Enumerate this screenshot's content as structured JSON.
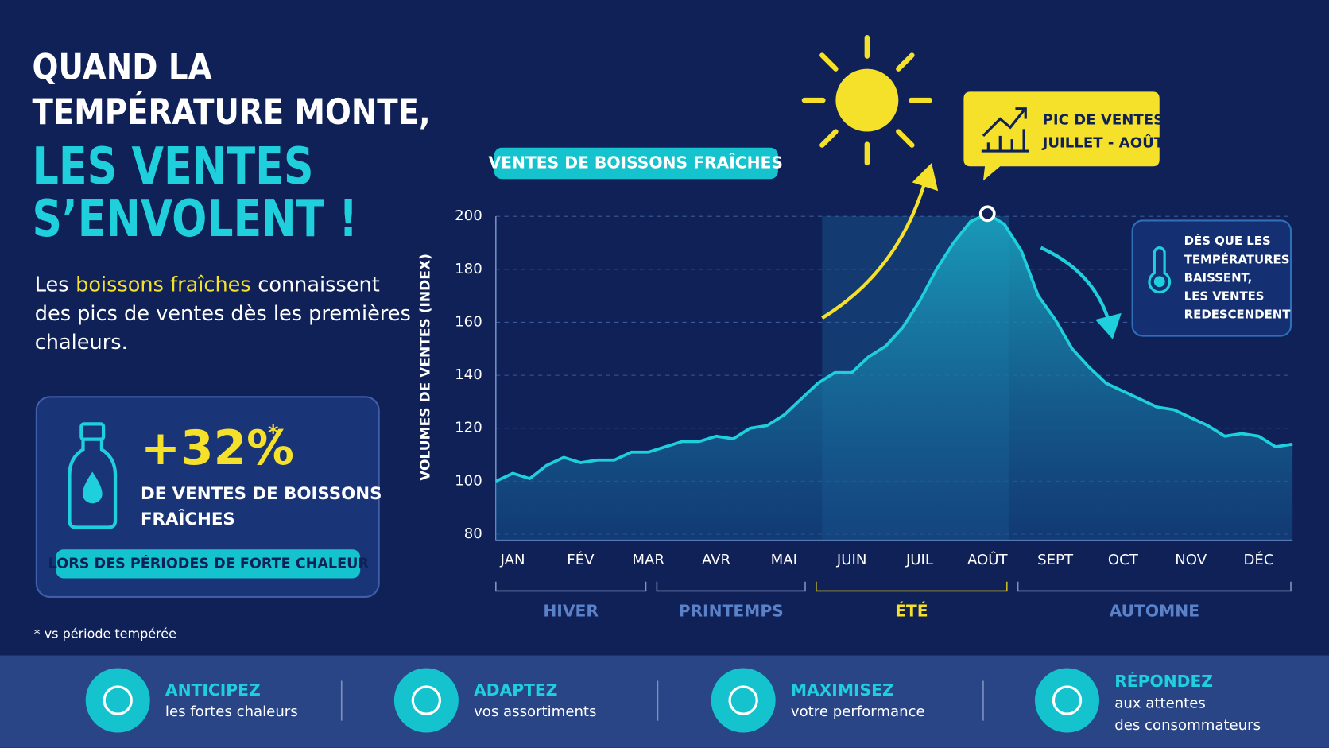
{
  "headline": {
    "lines": [
      "QUAND LA",
      "TEMPÉRATURE MONTE,"
    ],
    "accent_lines": [
      "LES VENTES",
      "S’ENVOLENT !"
    ]
  },
  "intro": {
    "line1": [
      "Les",
      "boissons fraîches",
      "connaissent"
    ],
    "lines": [
      "des pics de ventes dès les premières",
      "chaleurs."
    ]
  },
  "stat": {
    "value": "+32%",
    "mark": "*",
    "lines": [
      "DE VENTES DE BOISSONS",
      "FRAÎCHES"
    ],
    "badge": "LORS DES PÉRIODES DE FORTE CHALEUR"
  },
  "footnote": "* vs période tempérée",
  "peak_callout": [
    "PIC DE VENTES",
    "JUILLET - AOÛT"
  ],
  "drop_callout": [
    "DÈS QUE LES",
    "TEMPÉRATURES",
    "BAISSENT,",
    "LES VENTES",
    "REDESCENDENT"
  ],
  "seasons": [
    "HIVER",
    "PRINTEMPS",
    "ÉTÉ",
    "AUTOMNE"
  ],
  "footer": [
    {
      "title": "ANTICIPEZ",
      "lines": [
        "les fortes chaleurs"
      ]
    },
    {
      "title": "ADAPTEZ",
      "lines": [
        "vos assortiments"
      ]
    },
    {
      "title": "MAXIMISEZ",
      "lines": [
        "votre performance"
      ]
    },
    {
      "title": "RÉPONDEZ",
      "lines": [
        "aux attentes",
        "des consommateurs"
      ]
    }
  ],
  "chart_data": {
    "type": "area",
    "title": "VENTES DE BOISSONS FRAÎCHES",
    "y_label": "VOLUMES DE VENTES (INDEX)",
    "categories": [
      null,
      "JAN",
      null,
      null,
      null,
      "FÉV",
      null,
      null,
      null,
      "MAR",
      null,
      null,
      null,
      "AVR",
      null,
      null,
      null,
      "MAI",
      null,
      null,
      null,
      "JUIN",
      null,
      null,
      null,
      "JUIL",
      null,
      null,
      null,
      "AOÛT",
      null,
      null,
      null,
      "SEPT",
      null,
      null,
      null,
      "OCT",
      null,
      null,
      null,
      "NOV",
      null,
      null,
      null,
      "DÉC",
      null,
      null
    ],
    "values": [
      100,
      103,
      101,
      106,
      109,
      107,
      108,
      108,
      111,
      111,
      113,
      115,
      115,
      117,
      116,
      120,
      121,
      125,
      131,
      137,
      141,
      141,
      147,
      151,
      158,
      168,
      180,
      190,
      198,
      201,
      197,
      187,
      170,
      161,
      150,
      143,
      137,
      134,
      131,
      128,
      127,
      124,
      121,
      117,
      118,
      117,
      113,
      114
    ],
    "color": "#1fd0dc",
    "ylim": [
      80,
      200
    ],
    "yticks": [
      80,
      100,
      120,
      140,
      160,
      180,
      200
    ],
    "grid": true
  }
}
